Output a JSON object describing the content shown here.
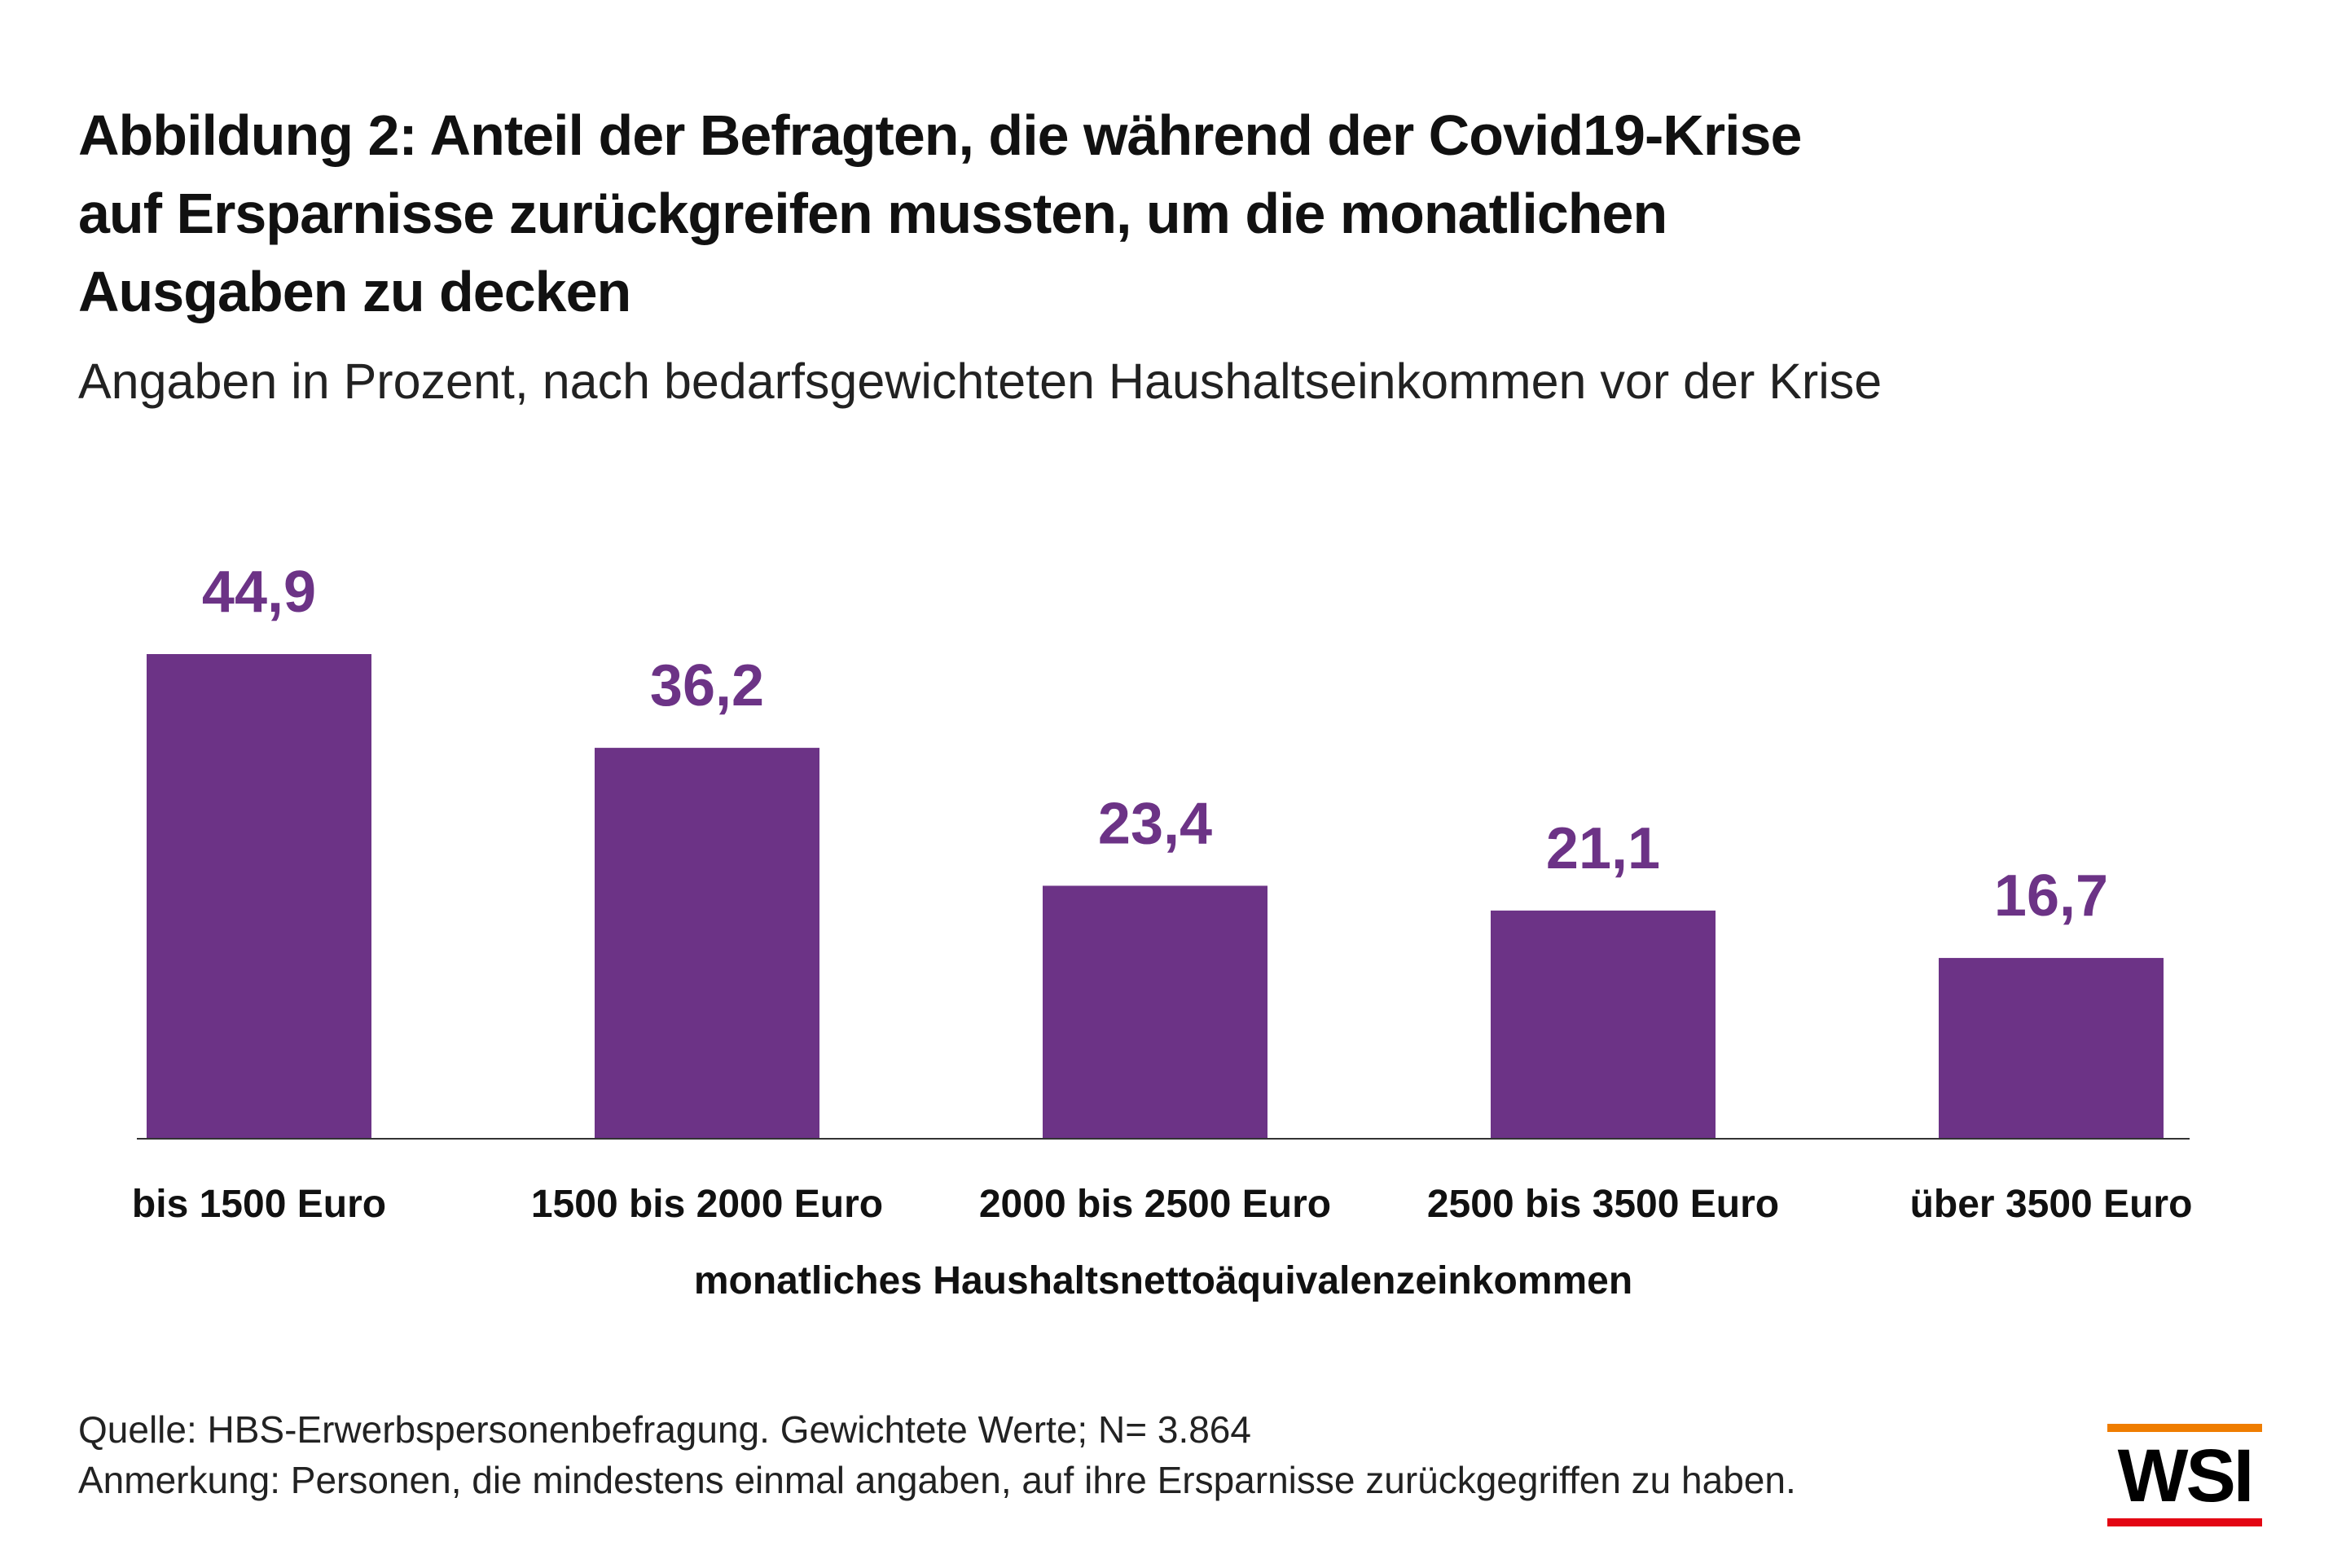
{
  "title_lines": [
    "Abbildung 2: Anteil der Befragten, die während der Covid19-Krise",
    "auf Ersparnisse zurückgreifen mussten, um die monatlichen",
    "Ausgaben zu decken"
  ],
  "subtitle": "Angaben in Prozent, nach bedarfsgewichteten Haushaltseinkommen vor der Krise",
  "chart_data": {
    "type": "bar",
    "title": "Abbildung 2: Anteil der Befragten, die während der Covid19-Krise auf Ersparnisse zurückgreifen mussten, um die monatlichen Ausgaben zu decken",
    "subtitle": "Angaben in Prozent, nach bedarfsgewichteten Haushaltseinkommen vor der Krise",
    "categories": [
      "bis 1500 Euro",
      "1500 bis 2000 Euro",
      "2000 bis 2500 Euro",
      "2500 bis 3500 Euro",
      "über 3500 Euro"
    ],
    "values": [
      44.9,
      36.2,
      23.4,
      21.1,
      16.7
    ],
    "value_labels": [
      "44,9",
      "36,2",
      "23,4",
      "21,1",
      "16,7"
    ],
    "xlabel": "monatliches Haushaltsnettoäquivalenzeinkommen",
    "ylabel": "",
    "ylim": [
      0,
      44.9
    ],
    "grid": false,
    "legend": "none",
    "bar_color": "#6c3386",
    "value_label_color": "#6c3386",
    "axis_color": "#333333"
  },
  "footer": {
    "source": "Quelle: HBS-Erwerbspersonenbefragung. Gewichtete Werte; N= 3.864",
    "note": "Anmerkung: Personen, die mindestens einmal angaben, auf ihre Ersparnisse zurückgegriffen zu haben."
  },
  "logo": {
    "text": "WSI",
    "top_bar_color": "#ef7d00",
    "bottom_bar_color": "#e30613"
  }
}
